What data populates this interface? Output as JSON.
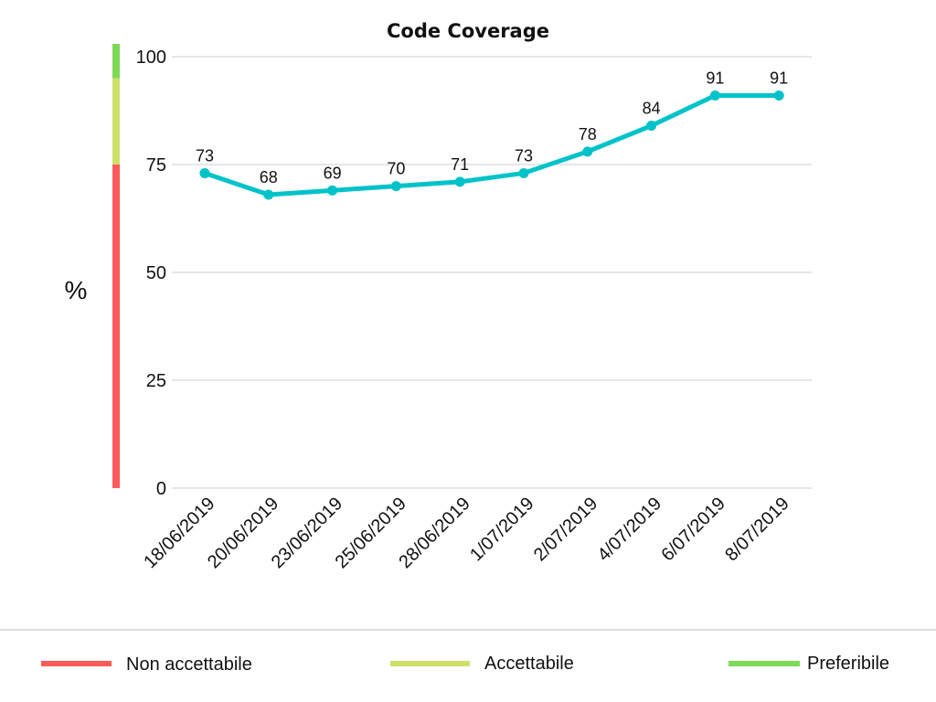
{
  "chart_data": {
    "type": "line",
    "title": "Code Coverage",
    "xlabel": "",
    "ylabel": "%",
    "ylim": [
      0,
      100
    ],
    "yticks": [
      0,
      25,
      50,
      75,
      100
    ],
    "grid": true,
    "categories": [
      "18/06/2019",
      "20/06/2019",
      "23/06/2019",
      "25/06/2019",
      "28/06/2019",
      "1/07/2019",
      "2/07/2019",
      "4/07/2019",
      "6/07/2019",
      "8/07/2019"
    ],
    "series": [
      {
        "values": [
          73,
          68,
          69,
          70,
          71,
          73,
          78,
          84,
          91,
          91
        ],
        "color": "#00c3c9"
      }
    ],
    "bands": [
      {
        "name": "Non accettabile",
        "from": 0,
        "to": 75,
        "color": "#ff5a5a"
      },
      {
        "name": "Accettabile",
        "from": 75,
        "to": 95,
        "color": "#cde06a"
      },
      {
        "name": "Preferibile",
        "from": 95,
        "to": 100,
        "color": "#7ed957"
      }
    ],
    "legend_position": "bottom"
  }
}
